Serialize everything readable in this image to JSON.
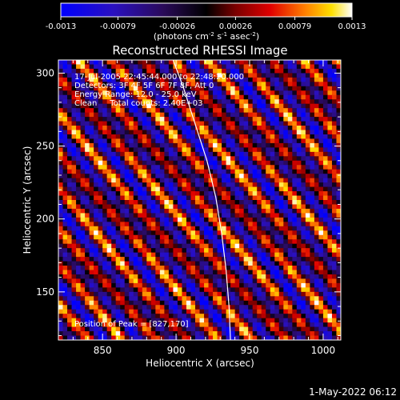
{
  "chart_data": {
    "type": "heatmap",
    "title": "Reconstructed RHESSI Image",
    "xlabel": "Heliocentric X (arcsec)",
    "ylabel": "Heliocentric Y (arcsec)",
    "xlim": [
      820,
      1012
    ],
    "ylim": [
      117,
      309
    ],
    "x_ticks": [
      850,
      900,
      950,
      1000
    ],
    "y_ticks": [
      150,
      200,
      250,
      300
    ],
    "colorbar": {
      "min": -0.0013,
      "max": 0.0013,
      "tick_values": [
        -0.0013,
        -0.00079,
        -0.00026,
        0.00026,
        0.00079,
        0.0013
      ],
      "tick_labels": [
        "-0.0013",
        "-0.00079",
        "-0.00026",
        "0.00026",
        "0.00079",
        "0.0013"
      ],
      "units_label_parts": [
        "(photons cm",
        "-2",
        " s",
        "-1",
        " asec",
        "-2",
        ")"
      ]
    },
    "annotations": {
      "line1": "17-Jul-2005 22:45:44.000 to 22:48:20.000",
      "line2": "Detectors: 3F 4F 5F 6F 7F 8F, Att 0",
      "line3": "Energy Range: 12.0 - 25.0 keV",
      "line4": "Clean     Total counts: 2.40E+03",
      "peak": "Position of Peak = [827,170]"
    },
    "peak_position": [
      827,
      170
    ],
    "limb_points": [
      [
        898,
        309
      ],
      [
        905,
        290
      ],
      [
        913,
        265
      ],
      [
        921,
        240
      ],
      [
        927,
        215
      ],
      [
        931,
        190
      ],
      [
        934,
        165
      ],
      [
        936,
        140
      ],
      [
        937,
        117
      ]
    ],
    "pattern": {
      "stripe_slope": -1.18,
      "stripe_spacing_arcsec": 26,
      "amplitude": 0.0013
    },
    "timestamp": "1-May-2022 06:12"
  }
}
